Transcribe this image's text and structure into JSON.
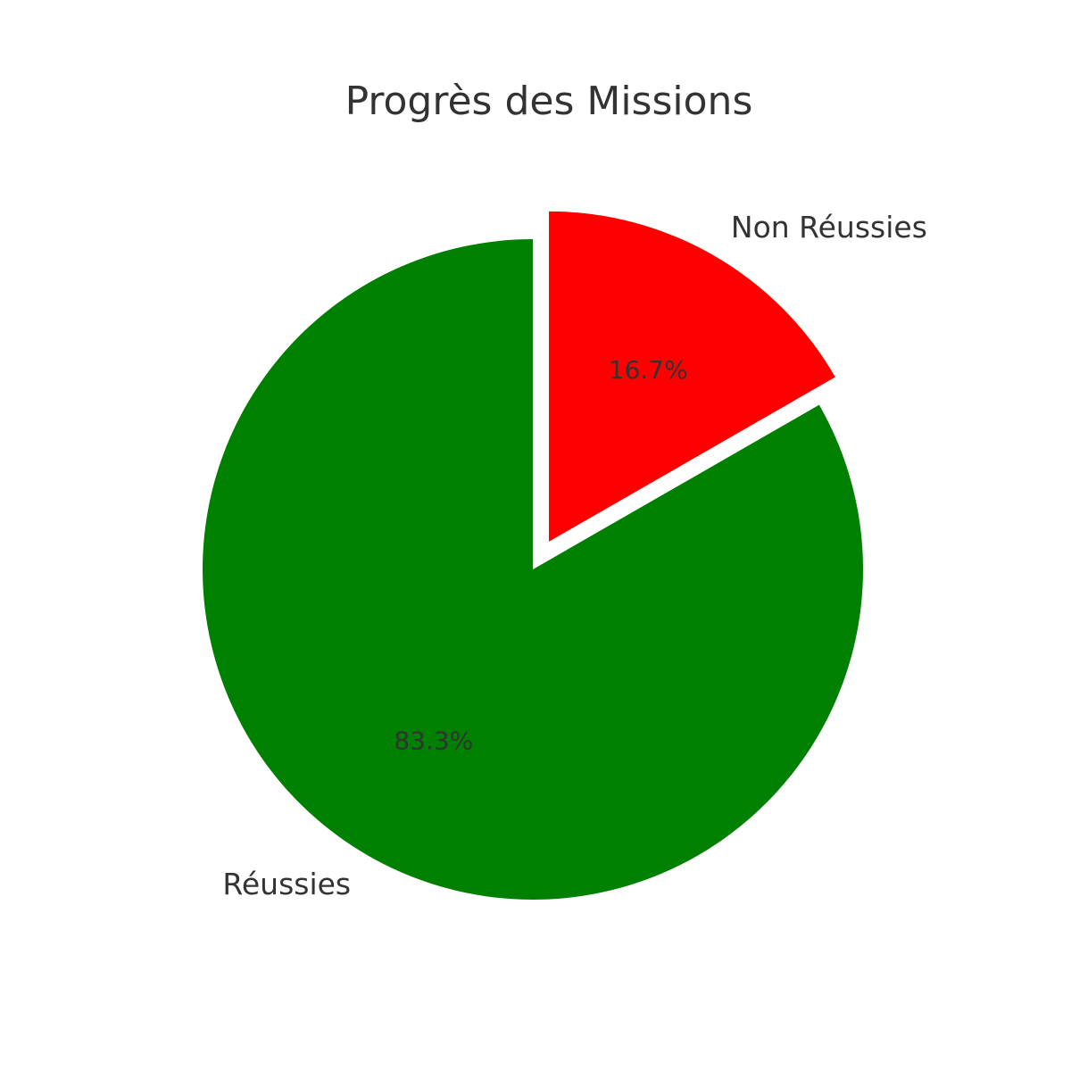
{
  "chart_data": {
    "type": "pie",
    "title": "Progrès des Missions",
    "categories": [
      "Réussies",
      "Non Réussies"
    ],
    "values": [
      83.3,
      16.7
    ],
    "labels": [
      "83.3%",
      "16.7%"
    ],
    "colors": [
      "#008000",
      "#ff0000"
    ],
    "explode": [
      0,
      1
    ],
    "start": "top, counterclockwise",
    "legend": "none"
  }
}
